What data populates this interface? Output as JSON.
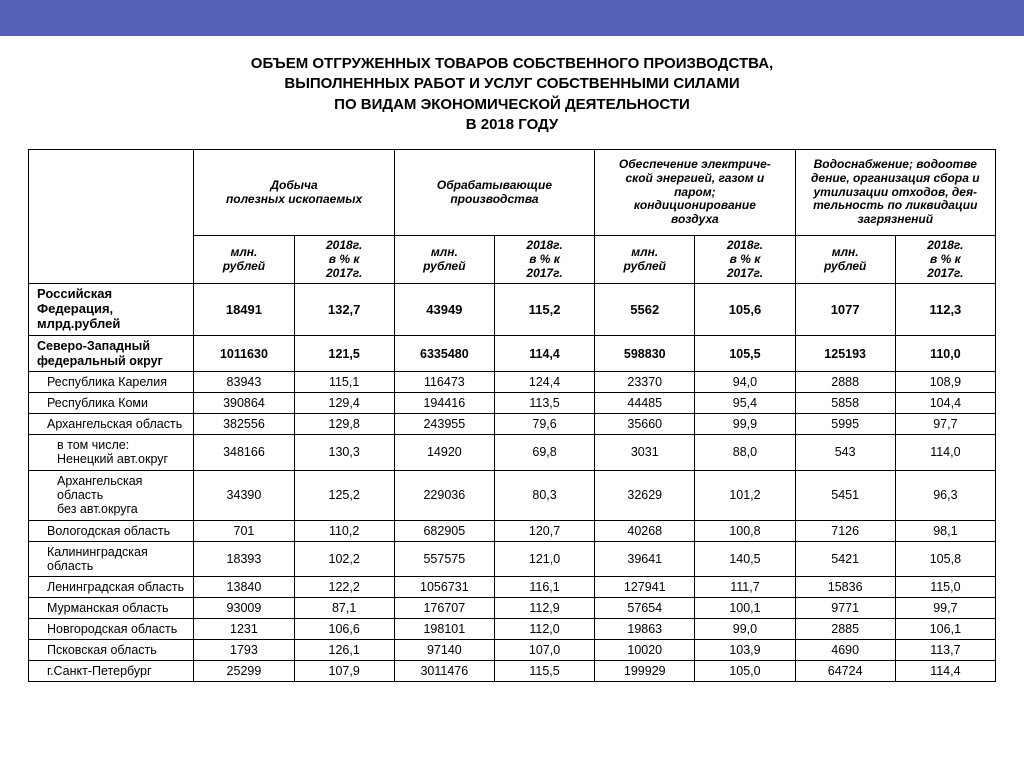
{
  "colors": {
    "top_bar": "#5561b8",
    "background": "#ffffff",
    "border": "#000000",
    "text": "#000000"
  },
  "typography": {
    "title_fontsize": 15,
    "body_fontsize": 12.5,
    "header_fontsize": 12,
    "font_family": "Arial"
  },
  "title_lines": [
    "ОБЪЕМ ОТГРУЖЕННЫХ ТОВАРОВ СОБСТВЕННОГО ПРОИЗВОДСТВА,",
    "ВЫПОЛНЕННЫХ РАБОТ И УСЛУГ СОБСТВЕННЫМИ СИЛАМИ",
    "ПО ВИДАМ ЭКОНОМИЧЕСКОЙ ДЕЯТЕЛЬНОСТИ",
    "В 2018 ГОДУ"
  ],
  "table": {
    "type": "table",
    "column_groups": [
      "Добыча\nполезных ископаемых",
      "Обрабатывающие\nпроизводства",
      "Обеспечение электриче-\nской энергией, газом и\nпаром;\nкондиционирование\nвоздуха",
      "Водоснабжение; водоотве\nдение, организация сбора и\nутилизации отходов, дея-\nтельность по ликвидации\nзагрязнений"
    ],
    "sub_columns": [
      "млн.\nрублей",
      "2018г.\nв % к\n2017г."
    ],
    "rows": [
      {
        "label": "Российская Федерация,\nмлрд.рублей",
        "bold": true,
        "fed": true,
        "indent": 0,
        "v": [
          "18491",
          "132,7",
          "43949",
          "115,2",
          "5562",
          "105,6",
          "1077",
          "112,3"
        ]
      },
      {
        "label": "Северо-Западный\nфедеральный округ",
        "bold": true,
        "indent": 0,
        "v": [
          "1011630",
          "121,5",
          "6335480",
          "114,4",
          "598830",
          "105,5",
          "125193",
          "110,0"
        ]
      },
      {
        "label": "Республика Карелия",
        "indent": 1,
        "v": [
          "83943",
          "115,1",
          "116473",
          "124,4",
          "23370",
          "94,0",
          "2888",
          "108,9"
        ]
      },
      {
        "label": "Республика Коми",
        "indent": 1,
        "v": [
          "390864",
          "129,4",
          "194416",
          "113,5",
          "44485",
          "95,4",
          "5858",
          "104,4"
        ]
      },
      {
        "label": "Архангельская область",
        "indent": 1,
        "v": [
          "382556",
          "129,8",
          "243955",
          "79,6",
          "35660",
          "99,9",
          "5995",
          "97,7"
        ]
      },
      {
        "label": "в том числе:\nНенецкий авт.округ",
        "indent": 2,
        "v": [
          "348166",
          "130,3",
          "14920",
          "69,8",
          "3031",
          "88,0",
          "543",
          "114,0"
        ]
      },
      {
        "label": "Архангельская область\nбез авт.округа",
        "indent": 2,
        "v": [
          "34390",
          "125,2",
          "229036",
          "80,3",
          "32629",
          "101,2",
          "5451",
          "96,3"
        ]
      },
      {
        "label": "Вологодская область",
        "indent": 1,
        "v": [
          "701",
          "110,2",
          "682905",
          "120,7",
          "40268",
          "100,8",
          "7126",
          "98,1"
        ]
      },
      {
        "label": "Калининградская область",
        "indent": 1,
        "v": [
          "18393",
          "102,2",
          "557575",
          "121,0",
          "39641",
          "140,5",
          "5421",
          "105,8"
        ]
      },
      {
        "label": "Ленинградская область",
        "indent": 1,
        "v": [
          "13840",
          "122,2",
          "1056731",
          "116,1",
          "127941",
          "111,7",
          "15836",
          "115,0"
        ]
      },
      {
        "label": "Мурманская область",
        "indent": 1,
        "v": [
          "93009",
          "87,1",
          "176707",
          "112,9",
          "57654",
          "100,1",
          "9771",
          "99,7"
        ]
      },
      {
        "label": "Новгородская область",
        "indent": 1,
        "v": [
          "1231",
          "106,6",
          "198101",
          "112,0",
          "19863",
          "99,0",
          "2885",
          "106,1"
        ]
      },
      {
        "label": "Псковская область",
        "indent": 1,
        "v": [
          "1793",
          "126,1",
          "97140",
          "107,0",
          "10020",
          "103,9",
          "4690",
          "113,7"
        ]
      },
      {
        "label": "г.Санкт-Петербург",
        "indent": 1,
        "v": [
          "25299",
          "107,9",
          "3011476",
          "115,5",
          "199929",
          "105,0",
          "64724",
          "114,4"
        ]
      }
    ]
  }
}
